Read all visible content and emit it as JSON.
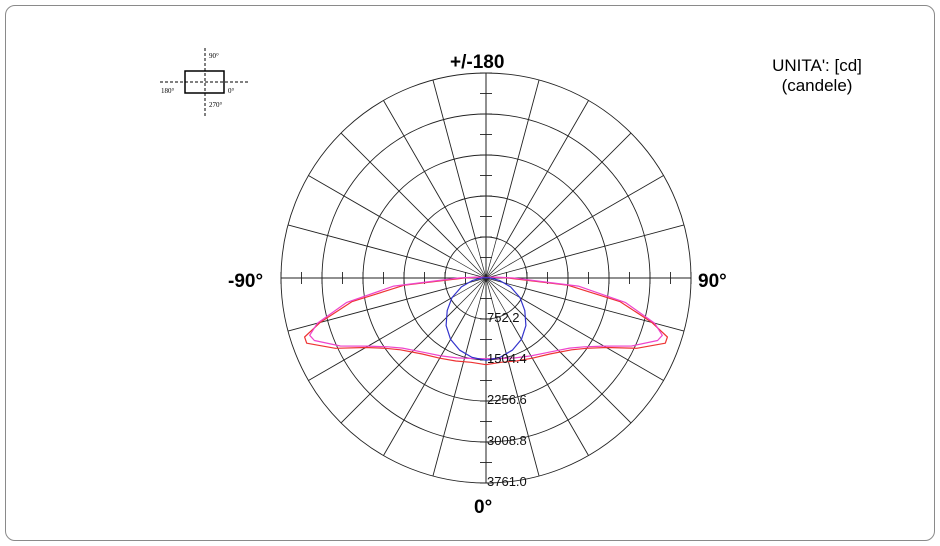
{
  "units_title": "UNITA': [cd]",
  "units_subtitle": "(candele)",
  "orientation_inset": {
    "labels": [
      "90°",
      "180°",
      "0°",
      "270°"
    ]
  },
  "chart_data": {
    "type": "polar",
    "angle_labels": {
      "top": "+/-180",
      "left": "-90°",
      "right": "90°",
      "bottom": "0°"
    },
    "radial_labels": [
      "752.2",
      "1504.4",
      "2256.6",
      "3008.8",
      "3761.0"
    ],
    "r_max": 3761.0,
    "angular_grid_step_deg": 15,
    "series": [
      {
        "color": "#ee3333",
        "points": [
          [
            0,
            1590
          ],
          [
            10,
            1570
          ],
          [
            20,
            1620
          ],
          [
            30,
            1700
          ],
          [
            40,
            1820
          ],
          [
            50,
            2050
          ],
          [
            55,
            2250
          ],
          [
            60,
            2550
          ],
          [
            65,
            3050
          ],
          [
            70,
            3500
          ],
          [
            72,
            3500
          ],
          [
            75,
            3150
          ],
          [
            80,
            2500
          ],
          [
            85,
            1500
          ],
          [
            90,
            400
          ],
          [
            95,
            150
          ],
          [
            100,
            60
          ],
          [
            110,
            20
          ],
          [
            130,
            10
          ],
          [
            180,
            0
          ]
        ]
      },
      {
        "color": "#ee44cc",
        "points": [
          [
            0,
            1480
          ],
          [
            10,
            1500
          ],
          [
            20,
            1560
          ],
          [
            30,
            1650
          ],
          [
            40,
            1780
          ],
          [
            50,
            2000
          ],
          [
            55,
            2200
          ],
          [
            60,
            2500
          ],
          [
            65,
            2950
          ],
          [
            70,
            3350
          ],
          [
            72,
            3400
          ],
          [
            75,
            3200
          ],
          [
            80,
            2600
          ],
          [
            85,
            1700
          ],
          [
            90,
            500
          ],
          [
            95,
            180
          ],
          [
            100,
            70
          ],
          [
            110,
            25
          ],
          [
            130,
            10
          ],
          [
            180,
            0
          ]
        ]
      },
      {
        "color": "#3333cc",
        "points": [
          [
            0,
            1510
          ],
          [
            10,
            1480
          ],
          [
            20,
            1410
          ],
          [
            30,
            1300
          ],
          [
            40,
            1140
          ],
          [
            50,
            930
          ],
          [
            60,
            720
          ],
          [
            70,
            480
          ],
          [
            80,
            250
          ],
          [
            90,
            80
          ],
          [
            100,
            30
          ],
          [
            120,
            10
          ],
          [
            180,
            0
          ]
        ]
      }
    ]
  }
}
